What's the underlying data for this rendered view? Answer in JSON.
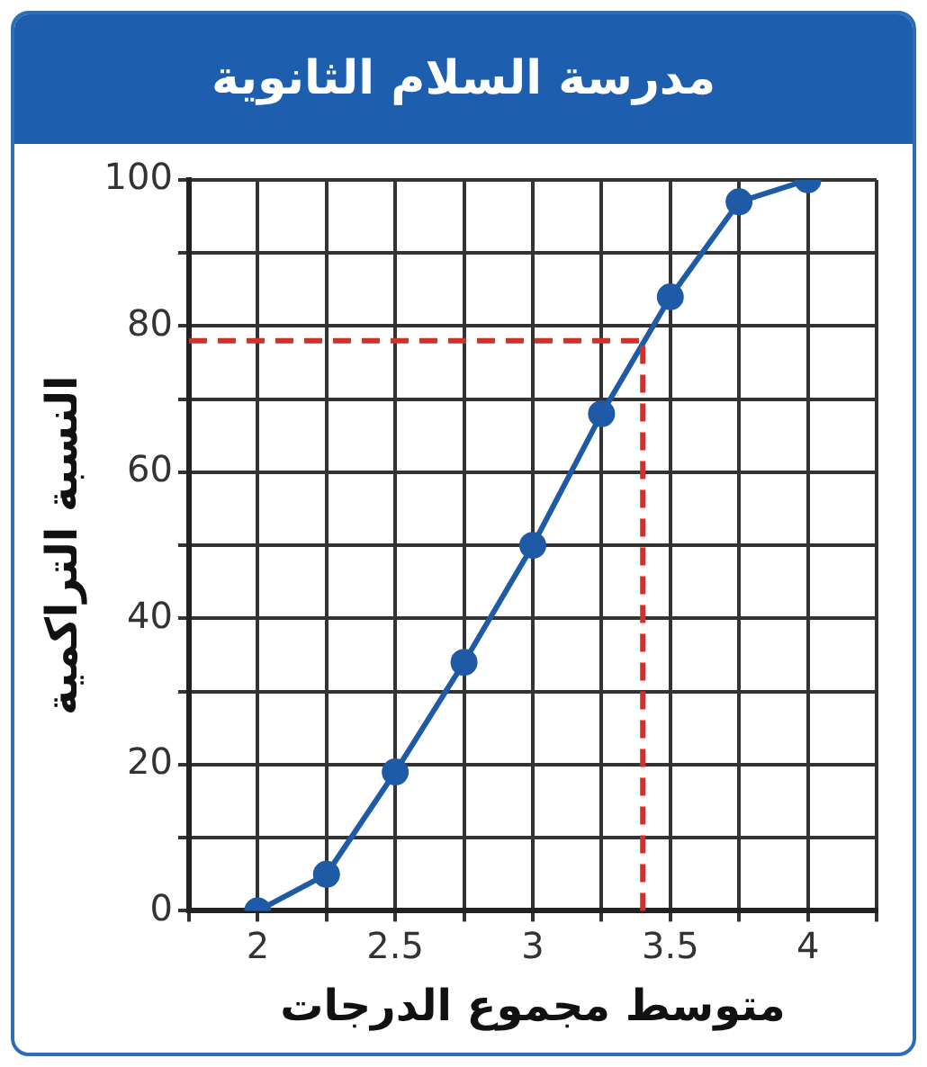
{
  "chart_data": {
    "type": "line",
    "title": "مدرسة السلام الثانوية",
    "xlabel": "متوسط مجموع الدرجات",
    "ylabel": "النسبة التراكمية",
    "x": [
      2,
      2.25,
      2.5,
      2.75,
      3,
      3.25,
      3.5,
      3.75,
      4
    ],
    "series": [
      {
        "color": "#1f5aa6",
        "values": [
          0,
          5,
          19,
          34,
          50,
          68,
          84,
          97,
          100
        ],
        "marker": "circle",
        "line_style": "solid"
      }
    ],
    "ref_lines": [
      {
        "axis": "y",
        "value": 78,
        "color": "#d0312d",
        "line_style": "dashed"
      },
      {
        "axis": "x",
        "value": 3.4,
        "color": "#d0312d",
        "line_style": "dashed"
      }
    ],
    "xlim": [
      1.75,
      4.25
    ],
    "xticks": [
      {
        "value": 1.75,
        "label": null
      },
      2,
      {
        "value": 2.25,
        "label": null
      },
      2.5,
      {
        "value": 2.75,
        "label": null
      },
      3,
      {
        "value": 3.25,
        "label": null
      },
      3.5,
      {
        "value": 3.75,
        "label": null
      },
      4,
      {
        "value": 4.25,
        "label": null
      }
    ],
    "ylim": [
      0,
      100
    ],
    "yticks": [
      0,
      {
        "value": 10,
        "label": null
      },
      20,
      {
        "value": 30,
        "label": null
      },
      40,
      {
        "value": 50,
        "label": null
      },
      60,
      {
        "value": 70,
        "label": null
      },
      80,
      {
        "value": 90,
        "label": null
      },
      100
    ],
    "grid": true,
    "legend": false
  }
}
